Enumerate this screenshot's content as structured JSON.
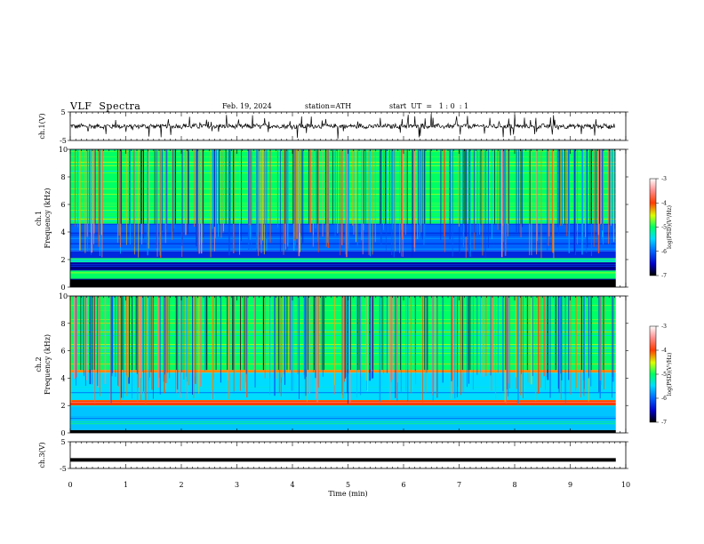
{
  "header": {
    "title": "VLF  Spectra",
    "date": "Feb. 19, 2024",
    "station": "station=ATH",
    "start_ut": "start  UT  =   1 : 0  : 1"
  },
  "chart_data": [
    {
      "type": "line",
      "panel": "ch1-waveform",
      "ylabel": "ch.1(V)",
      "ylim": [
        -5,
        5
      ],
      "yticks": [
        "5",
        "-5"
      ],
      "xlim": [
        0,
        10
      ],
      "description_values": {
        "baseline": 0,
        "typical_amplitude": 0.6,
        "spike_amplitude": 2.5
      },
      "series": [
        {
          "values": []
        }
      ]
    },
    {
      "type": "heatmap",
      "panel": "ch1-spectrogram",
      "ylabel": "ch.1\nFrequency (kHz)",
      "ylabel_line1": "ch.1",
      "ylabel_line2": "Frequency  (kHz)",
      "ylim": [
        0,
        10
      ],
      "yticks": [
        "0",
        "2",
        "4",
        "6",
        "8",
        "10"
      ],
      "xlim": [
        0,
        10
      ],
      "bands": [
        {
          "f0": 10,
          "f1": 4.6,
          "log_psd": -5.0
        },
        {
          "f0": 4.6,
          "f1": 2.6,
          "log_psd": -6.0
        },
        {
          "f0": 2.6,
          "f1": 2.1,
          "log_psd": -6.3
        },
        {
          "f0": 2.1,
          "f1": 1.8,
          "log_psd": -5.2
        },
        {
          "f0": 1.8,
          "f1": 1.2,
          "log_psd": -6.6
        },
        {
          "f0": 1.2,
          "f1": 0.6,
          "log_psd": -5.0
        },
        {
          "f0": 0.6,
          "f1": 0.0,
          "log_psd": -7.0
        }
      ],
      "colorbar": {
        "label": "log(PSD)(V²/Hz)",
        "range": [
          -7,
          -3
        ],
        "ticks": [
          "-3",
          "-4",
          "-5",
          "-6",
          "-7"
        ]
      }
    },
    {
      "type": "heatmap",
      "panel": "ch2-spectrogram",
      "ylabel_line1": "ch.2",
      "ylabel_line2": "Frequency  (kHz)",
      "ylim": [
        0,
        10
      ],
      "yticks": [
        "0",
        "2",
        "4",
        "6",
        "8",
        "10"
      ],
      "xlim": [
        0,
        10
      ],
      "bands": [
        {
          "f0": 10,
          "f1": 4.6,
          "log_psd": -5.0
        },
        {
          "f0": 4.6,
          "f1": 4.4,
          "log_psd": -4.2
        },
        {
          "f0": 4.4,
          "f1": 2.4,
          "log_psd": -5.5
        },
        {
          "f0": 2.4,
          "f1": 2.0,
          "log_psd": -4.0
        },
        {
          "f0": 2.0,
          "f1": 0.2,
          "log_psd": -5.6
        },
        {
          "f0": 0.2,
          "f1": 0.0,
          "log_psd": -7.0
        }
      ],
      "colorbar": {
        "label": "log(PSD)(V²/Hz)",
        "range": [
          -7,
          -3
        ],
        "ticks": [
          "-3",
          "-4",
          "-5",
          "-6",
          "-7"
        ]
      }
    },
    {
      "type": "line",
      "panel": "ch3-waveform",
      "ylabel": "ch.3(V)",
      "ylim": [
        -5,
        5
      ],
      "yticks": [
        "5",
        "-5"
      ],
      "xlim": [
        0,
        10
      ],
      "series": [
        {
          "values": [
            -1.8,
            -1.8
          ]
        }
      ]
    }
  ],
  "xaxis": {
    "label": "Time  (min)",
    "ticks": [
      "0",
      "1",
      "2",
      "3",
      "4",
      "5",
      "6",
      "7",
      "8",
      "9",
      "10"
    ]
  },
  "colors": {
    "cb_-7": "#000000",
    "cb_-6.5": "#0000c8",
    "cb_-6": "#0064ff",
    "cb_-5.5": "#00dcff",
    "cb_-5": "#00ff64",
    "cb_-4.5": "#dcff00",
    "cb_-4": "#ff3c00",
    "cb_-3.5": "#ff9090",
    "cb_-3": "#ffffff"
  }
}
